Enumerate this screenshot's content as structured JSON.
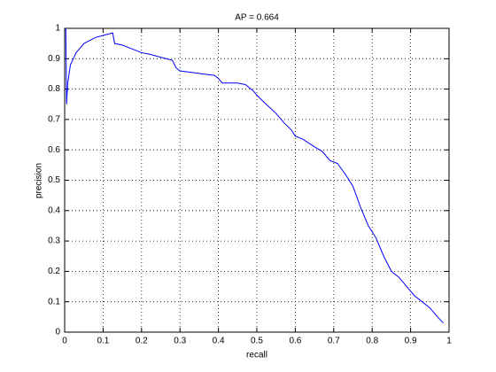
{
  "chart_data": {
    "type": "line",
    "title": "AP = 0.664",
    "x_label": "recall",
    "y_label": "precision",
    "x": [
      0.003,
      0.005,
      0.008,
      0.015,
      0.03,
      0.05,
      0.08,
      0.11,
      0.125,
      0.13,
      0.15,
      0.17,
      0.2,
      0.22,
      0.25,
      0.28,
      0.29,
      0.3,
      0.33,
      0.36,
      0.39,
      0.4,
      0.41,
      0.45,
      0.47,
      0.49,
      0.5,
      0.52,
      0.55,
      0.57,
      0.59,
      0.6,
      0.62,
      0.65,
      0.67,
      0.69,
      0.71,
      0.73,
      0.75,
      0.77,
      0.79,
      0.81,
      0.83,
      0.85,
      0.87,
      0.89,
      0.91,
      0.93,
      0.95,
      0.97,
      0.985
    ],
    "series": [
      {
        "name": "precision",
        "color": "#0000ff",
        "values": [
          1.0,
          0.75,
          0.82,
          0.88,
          0.92,
          0.95,
          0.97,
          0.98,
          0.985,
          0.95,
          0.945,
          0.935,
          0.92,
          0.915,
          0.905,
          0.895,
          0.87,
          0.86,
          0.855,
          0.85,
          0.845,
          0.835,
          0.82,
          0.82,
          0.815,
          0.795,
          0.78,
          0.755,
          0.72,
          0.69,
          0.665,
          0.645,
          0.635,
          0.61,
          0.595,
          0.565,
          0.555,
          0.52,
          0.48,
          0.41,
          0.35,
          0.31,
          0.25,
          0.2,
          0.18,
          0.15,
          0.12,
          0.1,
          0.08,
          0.05,
          0.03
        ]
      }
    ],
    "xlim": [
      0,
      1
    ],
    "ylim": [
      0,
      1
    ],
    "xticks": [
      0,
      0.1,
      0.2,
      0.3,
      0.4,
      0.5,
      0.6,
      0.7,
      0.8,
      0.9,
      1
    ],
    "yticks": [
      0,
      0.1,
      0.2,
      0.3,
      0.4,
      0.5,
      0.6,
      0.7,
      0.8,
      0.9,
      1
    ],
    "grid": true
  }
}
